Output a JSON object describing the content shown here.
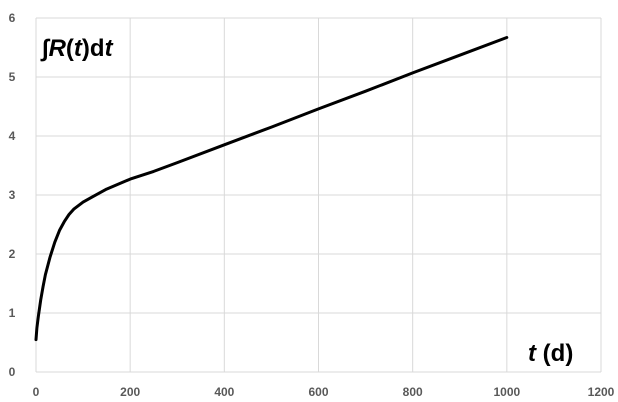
{
  "chart_data": {
    "type": "line",
    "title": "",
    "ylabel_parts": [
      "∫",
      "R",
      "(",
      "t",
      ")d",
      "t"
    ],
    "xlabel_parts": [
      "t",
      " (d)"
    ],
    "xlim": [
      0,
      1200
    ],
    "ylim": [
      0,
      6
    ],
    "x_ticks": [
      "0",
      "200",
      "400",
      "600",
      "800",
      "1000",
      "1200"
    ],
    "y_ticks": [
      "0",
      "1",
      "2",
      "3",
      "4",
      "5",
      "6"
    ],
    "grid": "major-both",
    "line_color": "#000000",
    "series": [
      {
        "x": [
          0,
          2,
          5,
          10,
          15,
          20,
          30,
          40,
          50,
          60,
          70,
          80,
          100,
          120,
          150,
          200,
          250,
          300,
          400,
          500,
          600,
          700,
          800,
          900,
          1000
        ],
        "y": [
          0.55,
          0.75,
          0.95,
          1.22,
          1.45,
          1.65,
          1.95,
          2.2,
          2.4,
          2.55,
          2.67,
          2.76,
          2.88,
          2.97,
          3.1,
          3.27,
          3.4,
          3.55,
          3.85,
          4.15,
          4.46,
          4.76,
          5.07,
          5.37,
          5.67
        ]
      }
    ]
  }
}
